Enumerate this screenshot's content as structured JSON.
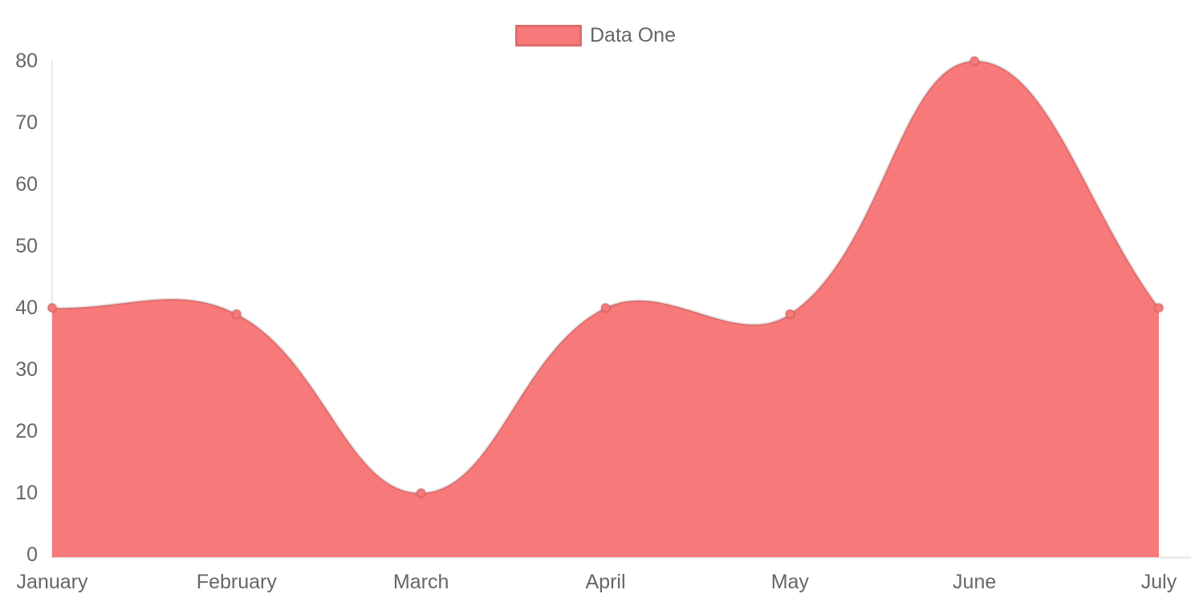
{
  "chart_data": {
    "type": "area",
    "title": "",
    "categories": [
      "January",
      "February",
      "March",
      "April",
      "May",
      "June",
      "July"
    ],
    "series": [
      {
        "name": "Data One",
        "values": [
          40,
          39,
          10,
          40,
          39,
          80,
          40
        ]
      }
    ],
    "ylim": [
      0,
      80
    ],
    "y_ticks": [
      0,
      10,
      20,
      30,
      40,
      50,
      60,
      70,
      80
    ],
    "grid": "off",
    "legend_position": "top",
    "line_tension": 0.4,
    "colors": {
      "fill": "#f87979",
      "line": "rgba(0,0,0,0.10)",
      "point_fill": "#f87979",
      "point_border": "rgba(0,0,0,0.10)",
      "axis_line": "rgba(0,0,0,0.09)",
      "label": "#666666"
    }
  }
}
